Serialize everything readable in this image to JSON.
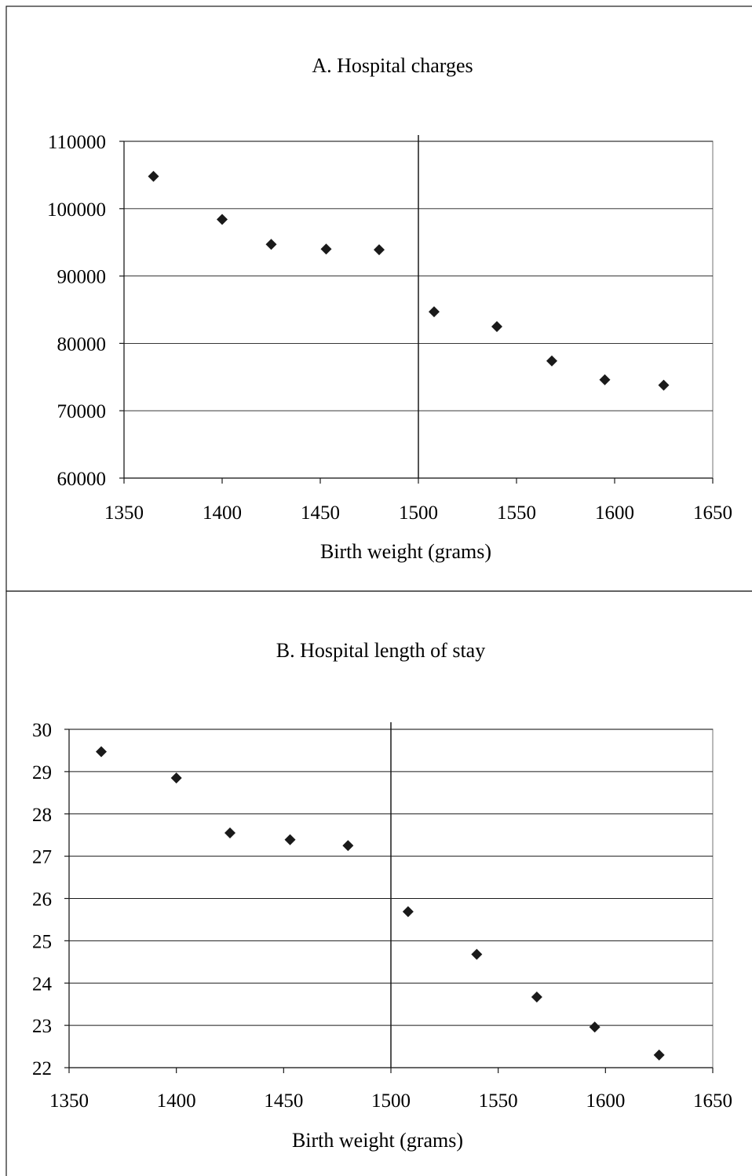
{
  "chart_data": [
    {
      "type": "scatter",
      "title": "A.  Hospital charges",
      "xlabel": "Birth weight (grams)",
      "ylabel": "",
      "xlim": [
        1350,
        1650
      ],
      "ylim": [
        60000,
        110000
      ],
      "x_ticks": [
        "1350",
        "1400",
        "1450",
        "1500",
        "1550",
        "1600",
        "1650"
      ],
      "y_ticks": [
        "110000",
        "100000",
        "90000",
        "80000",
        "70000",
        "60000"
      ],
      "grid": true,
      "cutoff_line_x": 1500,
      "series": [
        {
          "points": [
            [
              1365,
              104800
            ],
            [
              1400,
              98400
            ],
            [
              1425,
              94700
            ],
            [
              1453,
              94000
            ],
            [
              1480,
              93900
            ],
            [
              1508,
              84700
            ],
            [
              1540,
              82500
            ],
            [
              1568,
              77400
            ],
            [
              1595,
              74600
            ],
            [
              1625,
              73800
            ]
          ]
        }
      ]
    },
    {
      "type": "scatter",
      "title": "B. Hospital length of stay",
      "xlabel": "Birth weight (grams)",
      "ylabel": "",
      "xlim": [
        1350,
        1650
      ],
      "ylim": [
        22,
        30
      ],
      "x_ticks": [
        "1350",
        "1400",
        "1450",
        "1500",
        "1550",
        "1600",
        "1650"
      ],
      "y_ticks": [
        "30",
        "29",
        "28",
        "27",
        "26",
        "25",
        "24",
        "23",
        "22"
      ],
      "grid": true,
      "cutoff_line_x": 1500,
      "series": [
        {
          "points": [
            [
              1365,
              29.47
            ],
            [
              1400,
              28.85
            ],
            [
              1425,
              27.55
            ],
            [
              1453,
              27.39
            ],
            [
              1480,
              27.25
            ],
            [
              1508,
              25.69
            ],
            [
              1540,
              24.68
            ],
            [
              1568,
              23.67
            ],
            [
              1595,
              22.96
            ],
            [
              1625,
              22.3
            ]
          ]
        }
      ]
    }
  ]
}
